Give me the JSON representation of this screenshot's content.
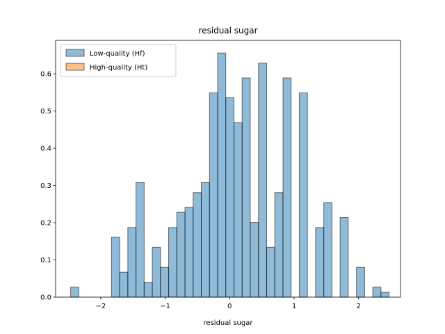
{
  "chart_data": {
    "type": "bar",
    "title": "residual sugar",
    "xlabel": "residual sugar",
    "ylabel": "",
    "xlim": [
      -2.7,
      2.65
    ],
    "ylim": [
      0,
      0.69
    ],
    "xticks": [
      -2,
      -1,
      0,
      1,
      2
    ],
    "xtick_labels": [
      "−2",
      "−1",
      "0",
      "1",
      "2"
    ],
    "yticks": [
      0.0,
      0.1,
      0.2,
      0.3,
      0.4,
      0.5,
      0.6
    ],
    "ytick_labels": [
      "0.0",
      "0.1",
      "0.2",
      "0.3",
      "0.4",
      "0.5",
      "0.6"
    ],
    "grid": false,
    "legend_position": "top-left",
    "bin_width": 0.1267,
    "series": [
      {
        "name": "Low-quality (Hf)",
        "color": "#1f77b4",
        "bins": [
          {
            "x0": -2.467,
            "value": 0.027
          },
          {
            "x0": -1.833,
            "value": 0.161
          },
          {
            "x0": -1.707,
            "value": 0.067
          },
          {
            "x0": -1.58,
            "value": 0.187
          },
          {
            "x0": -1.453,
            "value": 0.308
          },
          {
            "x0": -1.327,
            "value": 0.04
          },
          {
            "x0": -1.2,
            "value": 0.134
          },
          {
            "x0": -1.073,
            "value": 0.08
          },
          {
            "x0": -0.947,
            "value": 0.187
          },
          {
            "x0": -0.82,
            "value": 0.228
          },
          {
            "x0": -0.693,
            "value": 0.241
          },
          {
            "x0": -0.567,
            "value": 0.281
          },
          {
            "x0": -0.44,
            "value": 0.308
          },
          {
            "x0": -0.313,
            "value": 0.549
          },
          {
            "x0": -0.187,
            "value": 0.656
          },
          {
            "x0": -0.06,
            "value": 0.536
          },
          {
            "x0": 0.067,
            "value": 0.469
          },
          {
            "x0": 0.193,
            "value": 0.589
          },
          {
            "x0": 0.32,
            "value": 0.201
          },
          {
            "x0": 0.447,
            "value": 0.629
          },
          {
            "x0": 0.573,
            "value": 0.134
          },
          {
            "x0": 0.7,
            "value": 0.281
          },
          {
            "x0": 0.827,
            "value": 0.589
          },
          {
            "x0": 1.08,
            "value": 0.549
          },
          {
            "x0": 1.333,
            "value": 0.187
          },
          {
            "x0": 1.46,
            "value": 0.254
          },
          {
            "x0": 1.713,
            "value": 0.214
          },
          {
            "x0": 1.967,
            "value": 0.08
          },
          {
            "x0": 2.22,
            "value": 0.027
          },
          {
            "x0": 2.347,
            "value": 0.013
          }
        ]
      },
      {
        "name": "High-quality (Ht)",
        "color": "#ff7f0e",
        "bins": []
      }
    ]
  }
}
